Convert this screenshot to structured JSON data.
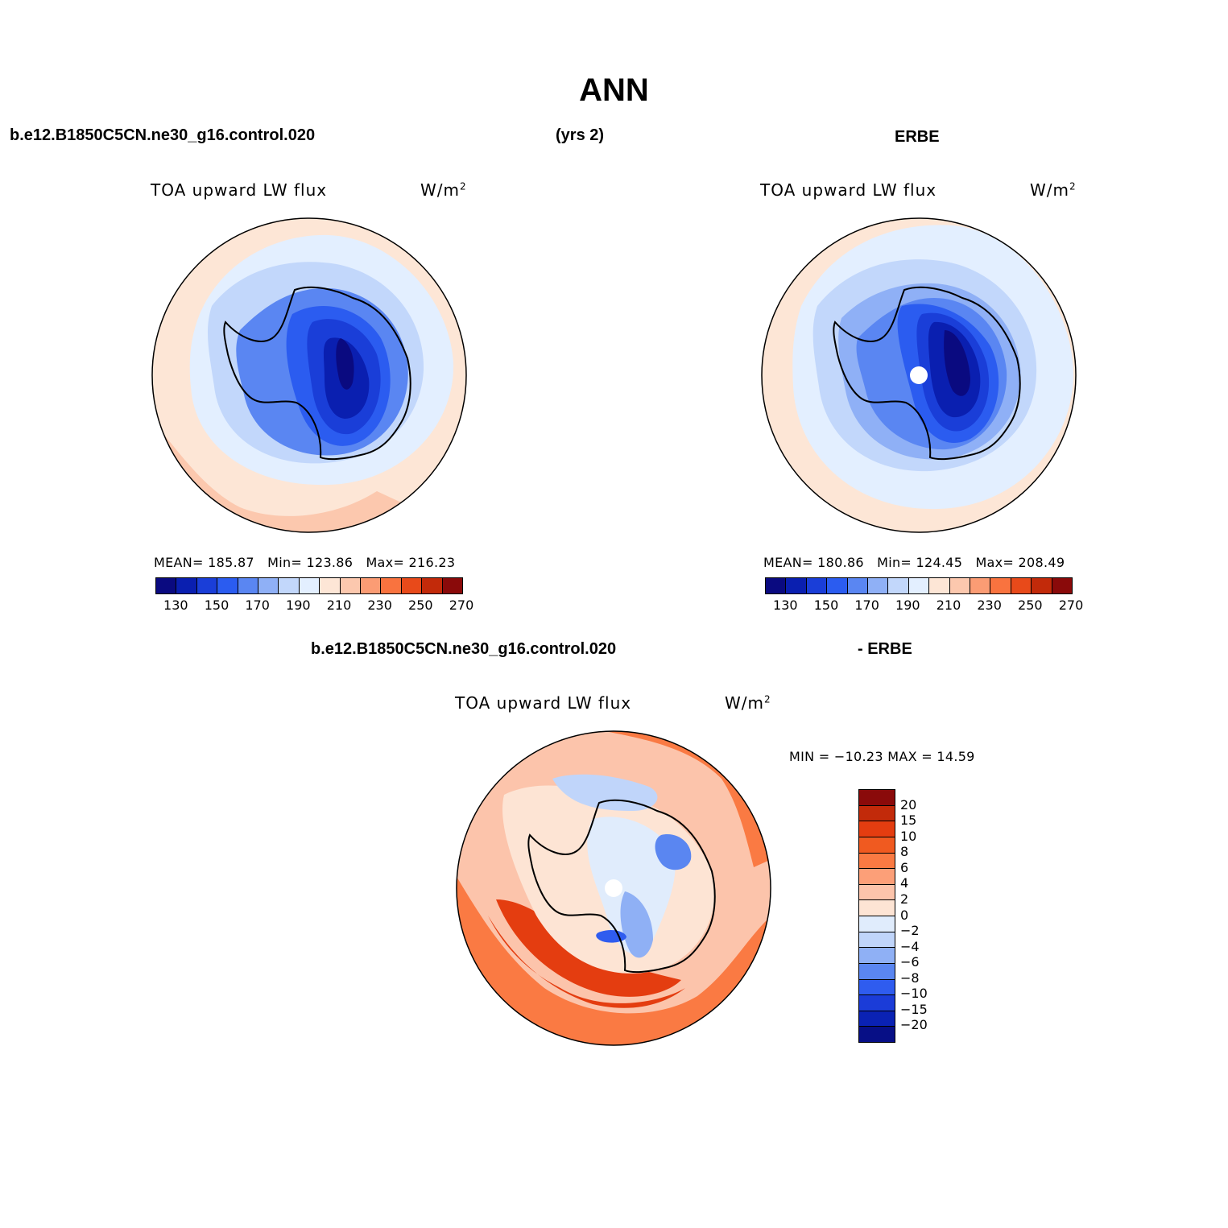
{
  "title": "ANN",
  "header": {
    "case_name": "b.e12.B1850C5CN.ne30_g16.control.020",
    "years": "(yrs 2)",
    "obs_name": "ERBE",
    "diff_case": "b.e12.B1850C5CN.ne30_g16.control.020",
    "diff_obs": "- ERBE"
  },
  "panels": {
    "model": {
      "variable": "TOA upward LW flux",
      "units": "W/m",
      "units_exp": "2",
      "stats": {
        "mean_label": "MEAN=",
        "mean": "185.87",
        "min_label": "Min=",
        "min": "123.86",
        "max_label": "Max=",
        "max": "216.23"
      }
    },
    "obs": {
      "variable": "TOA upward LW flux",
      "units": "W/m",
      "units_exp": "2",
      "stats": {
        "mean_label": "MEAN=",
        "mean": "180.86",
        "min_label": "Min=",
        "min": "124.45",
        "max_label": "Max=",
        "max": "208.49"
      }
    },
    "diff": {
      "variable": "TOA upward LW flux",
      "units": "W/m",
      "units_exp": "2",
      "stats_text": "MIN = −10.23 MAX =   14.59"
    }
  },
  "colorbars": {
    "abs": {
      "colors": [
        "#0a0a80",
        "#0a1fb0",
        "#1a3ed8",
        "#2b5cf0",
        "#5a86f2",
        "#8fb0f6",
        "#c2d7fb",
        "#e3efff",
        "#fde6d6",
        "#fcc8ae",
        "#fb9c74",
        "#f9733f",
        "#e84a1a",
        "#c22a0a",
        "#8a0a0a"
      ],
      "ticks": [
        "130",
        "150",
        "170",
        "190",
        "210",
        "230",
        "250",
        "270"
      ]
    },
    "diff": {
      "colors": [
        "#8a0a0a",
        "#c22a0a",
        "#e43d10",
        "#f05a20",
        "#fa7a43",
        "#fc9f78",
        "#fcc4ab",
        "#fde4d4",
        "#e0ecfc",
        "#c0d5fa",
        "#8fb0f5",
        "#5a86f1",
        "#2f5cef",
        "#1b3cd8",
        "#0a22b4",
        "#070f86"
      ],
      "ticks": [
        "20",
        "15",
        "10",
        "8",
        "6",
        "4",
        "2",
        "0",
        "−2",
        "−4",
        "−6",
        "−8",
        "−10",
        "−15",
        "−20"
      ]
    }
  }
}
